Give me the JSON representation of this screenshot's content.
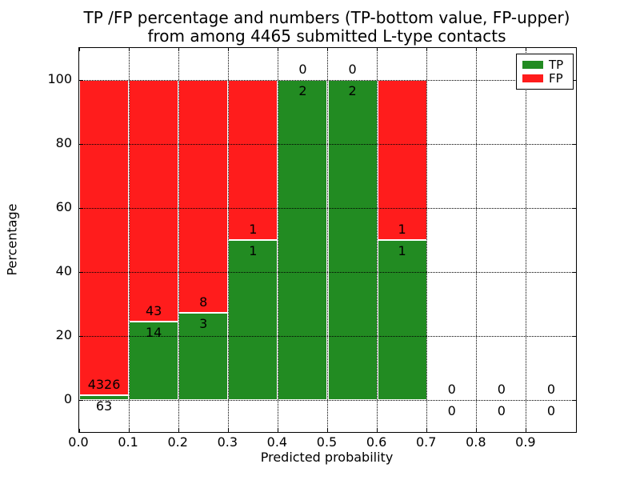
{
  "title": {
    "line1": "TP /FP percentage and numbers (TP-bottom value, FP-upper)",
    "line2": "from among 4465 submitted L-type contacts"
  },
  "axes": {
    "ylabel": "Percentage",
    "xlabel": "Predicted probability",
    "y_ticks": [
      0,
      20,
      40,
      60,
      80,
      100
    ],
    "x_ticks": [
      "0.0",
      "0.1",
      "0.2",
      "0.3",
      "0.4",
      "0.5",
      "0.6",
      "0.7",
      "0.8",
      "0.9"
    ],
    "ylim": [
      -10,
      110
    ],
    "xlim": [
      0.0,
      1.0
    ]
  },
  "legend": {
    "items": [
      {
        "label": "TP",
        "color": "#228B22"
      },
      {
        "label": "FP",
        "color": "#FF1C1C"
      }
    ],
    "position": "upper right"
  },
  "chart_data": {
    "type": "bar",
    "stacked": true,
    "title": "TP /FP percentage and numbers (TP-bottom value, FP-upper) from among 4465 submitted L-type contacts",
    "xlabel": "Predicted probability",
    "ylabel": "Percentage",
    "total_contacts": 4465,
    "x_bins": [
      [
        0.0,
        0.1
      ],
      [
        0.1,
        0.2
      ],
      [
        0.2,
        0.3
      ],
      [
        0.3,
        0.4
      ],
      [
        0.4,
        0.5
      ],
      [
        0.5,
        0.6
      ],
      [
        0.6,
        0.7
      ],
      [
        0.7,
        0.8
      ],
      [
        0.8,
        0.9
      ],
      [
        0.9,
        1.0
      ]
    ],
    "series": [
      {
        "name": "TP",
        "color": "#228B22",
        "counts": [
          63,
          14,
          3,
          1,
          2,
          2,
          1,
          0,
          0,
          0
        ]
      },
      {
        "name": "FP",
        "color": "#FF1C1C",
        "counts": [
          4326,
          43,
          8,
          1,
          0,
          0,
          1,
          0,
          0,
          0
        ]
      }
    ],
    "tp_percent": [
      1.44,
      24.56,
      27.27,
      50.0,
      100.0,
      100.0,
      50.0,
      null,
      null,
      null
    ],
    "ylim": [
      -10,
      110
    ],
    "grid": true,
    "grid_style": "dotted",
    "legend_position": "upper right"
  }
}
